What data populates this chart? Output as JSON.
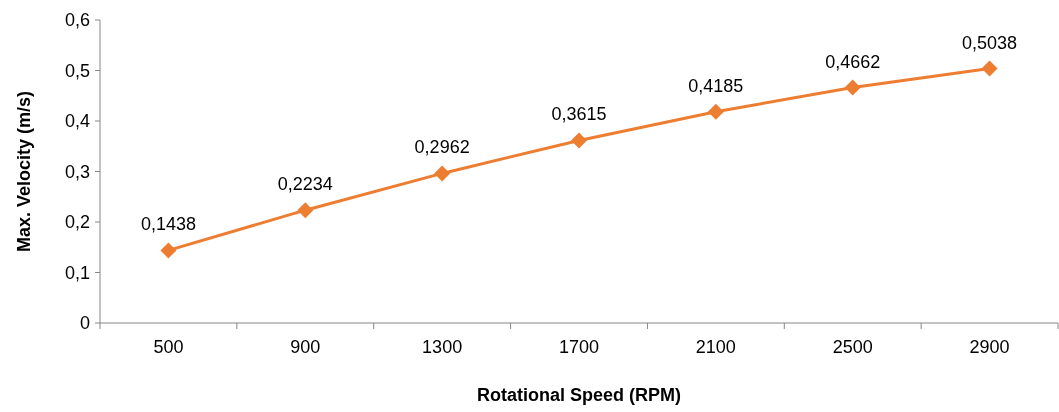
{
  "chart_data": {
    "type": "line",
    "xlabel": "Rotational Speed (RPM)",
    "ylabel": "Max. Velocity (m/s)",
    "categories": [
      "500",
      "900",
      "1300",
      "1700",
      "2100",
      "2500",
      "2900"
    ],
    "series": [
      {
        "color": "#ed7d31",
        "values": [
          0.1438,
          0.2234,
          0.2962,
          0.3615,
          0.4185,
          0.4662,
          0.5038
        ],
        "value_labels": [
          "0,1438",
          "0,2234",
          "0,2962",
          "0,3615",
          "0,4185",
          "0,4662",
          "0,5038"
        ]
      }
    ],
    "ylim": [
      0,
      0.6
    ],
    "yticks": [
      0,
      {
        "value": 0.1,
        "label": "0,1"
      },
      {
        "value": 0.2,
        "label": "0,2"
      },
      {
        "value": 0.3,
        "label": "0,3"
      },
      {
        "value": 0.4,
        "label": "0,4"
      },
      {
        "value": 0.5,
        "label": "0,5"
      },
      {
        "value": 0.6,
        "label": "0,6"
      }
    ],
    "grid": false,
    "marker": "diamond",
    "line_style": "solid"
  }
}
